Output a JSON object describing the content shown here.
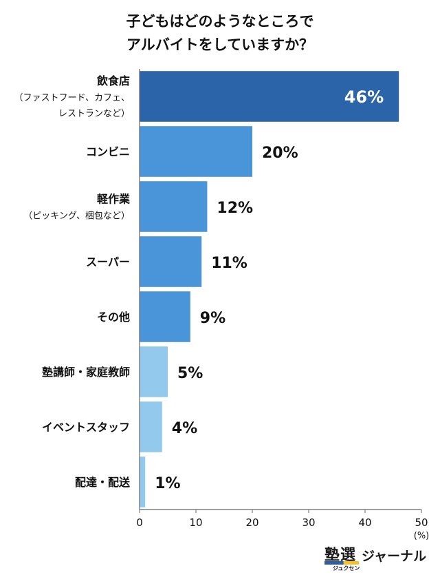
{
  "title_lines": [
    "子どもはどのようなところで",
    "アルバイトをしていますか？"
  ],
  "chart_data": {
    "type": "bar",
    "orientation": "horizontal",
    "categories": [
      [
        "飲食店",
        "（ファストフード、カフェ、",
        "レストランなど）"
      ],
      [
        "コンビニ"
      ],
      [
        "軽作業",
        "（ピッキング、梱包など）"
      ],
      [
        "スーパー"
      ],
      [
        "その他"
      ],
      [
        "塾講師・家庭教師"
      ],
      [
        "イベントスタッフ"
      ],
      [
        "配達・配送"
      ]
    ],
    "values": [
      46,
      20,
      12,
      11,
      9,
      5,
      4,
      1
    ],
    "value_labels": [
      "46%",
      "20%",
      "12%",
      "11%",
      "9%",
      "5%",
      "4%",
      "1%"
    ],
    "bar_colors": [
      "#2b64a8",
      "#4a94d9",
      "#4a94d9",
      "#4a94d9",
      "#4a94d9",
      "#94c9ee",
      "#94c9ee",
      "#94c9ee"
    ],
    "xlim": [
      0,
      50
    ],
    "xticks": [
      "0",
      "10",
      "20",
      "30",
      "40",
      "50"
    ],
    "xunit": "(%)",
    "grid": false
  },
  "logo": {
    "kanji": "塾選",
    "ruby": "ジュクセン",
    "text": "ジャーナル"
  }
}
